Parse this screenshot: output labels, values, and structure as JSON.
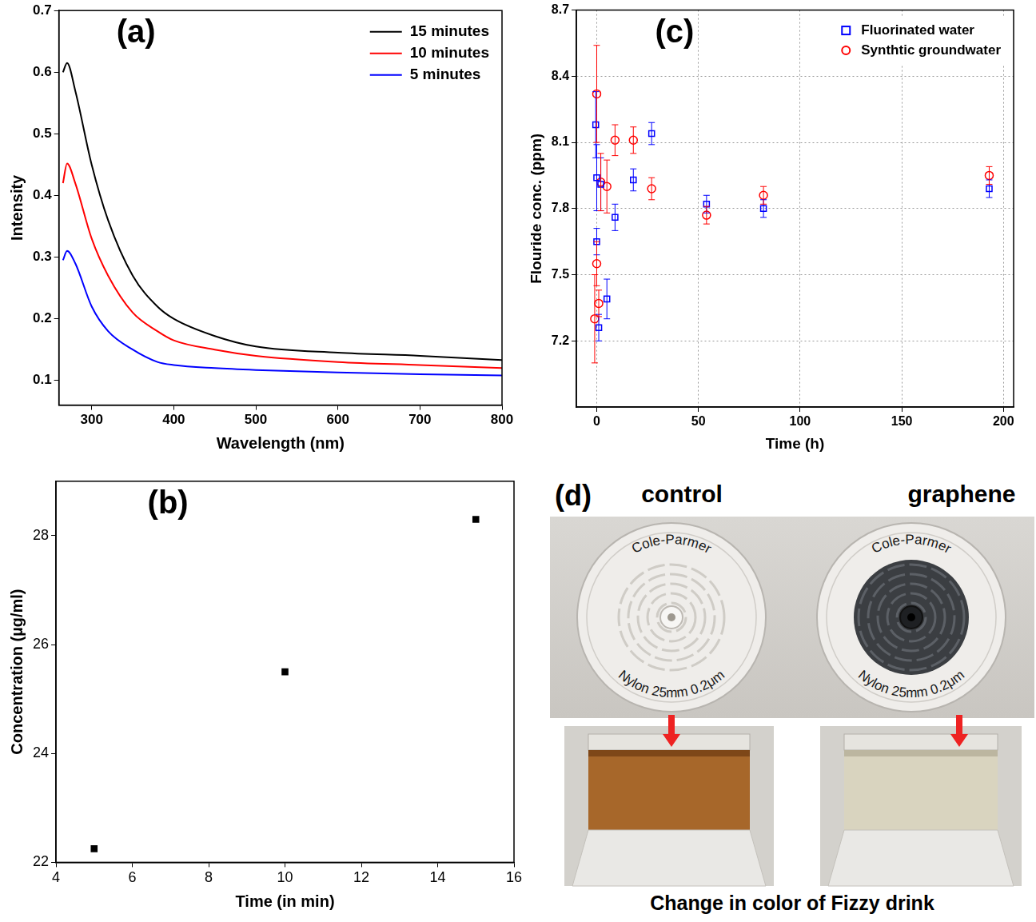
{
  "chart_data": [
    {
      "panel": "(a)",
      "type": "line",
      "x_label": "Wavelength (nm)",
      "y_label": "Intensity",
      "x": [
        265,
        270,
        280,
        300,
        320,
        350,
        380,
        400,
        450,
        500,
        600,
        700,
        800
      ],
      "series": [
        {
          "name": "15 minutes",
          "color": "#000000",
          "values": [
            0.6,
            0.615,
            0.57,
            0.45,
            0.36,
            0.27,
            0.22,
            0.2,
            0.172,
            0.155,
            0.145,
            0.14,
            0.133
          ]
        },
        {
          "name": "10 minutes",
          "color": "#ff0000",
          "values": [
            0.42,
            0.452,
            0.42,
            0.33,
            0.27,
            0.21,
            0.18,
            0.165,
            0.15,
            0.14,
            0.13,
            0.125,
            0.12
          ]
        },
        {
          "name": "5 minutes",
          "color": "#0000ff",
          "values": [
            0.295,
            0.31,
            0.29,
            0.22,
            0.18,
            0.15,
            0.13,
            0.125,
            0.12,
            0.117,
            0.113,
            0.11,
            0.108
          ]
        }
      ],
      "xlim": [
        260,
        800
      ],
      "xticks": [
        300,
        400,
        500,
        600,
        700,
        800
      ],
      "ylim": [
        0.06,
        0.7
      ],
      "yticks": [
        0.1,
        0.2,
        0.3,
        0.4,
        0.5,
        0.6,
        0.7
      ],
      "grid": false,
      "legend": "top-right"
    },
    {
      "panel": "(b)",
      "type": "scatter",
      "x_label": "Time (in min)",
      "y_label": "Concentration (µg/ml)",
      "x": [
        5,
        10,
        15
      ],
      "values": [
        22.25,
        25.5,
        28.3
      ],
      "color": "#000000",
      "marker": "square",
      "xlim": [
        4,
        16
      ],
      "xticks": [
        4,
        6,
        8,
        10,
        12,
        14,
        16
      ],
      "ylim": [
        22,
        29
      ],
      "yticks": [
        22,
        24,
        26,
        28
      ],
      "grid": false
    },
    {
      "panel": "(c)",
      "type": "scatter",
      "x_label": "Time (h)",
      "y_label": "Flouride conc. (ppm)",
      "series": [
        {
          "name": "Fluorinated water",
          "color": "#0000ff",
          "marker": "open square",
          "x": [
            -0.5,
            0,
            0,
            1,
            2,
            5,
            9,
            18,
            27,
            54,
            82,
            193
          ],
          "values": [
            8.18,
            7.94,
            7.65,
            7.26,
            7.91,
            7.39,
            7.76,
            7.93,
            8.14,
            7.82,
            7.8,
            7.89
          ],
          "errors": [
            0.15,
            0.15,
            0.06,
            0.06,
            0.12,
            0.09,
            0.06,
            0.05,
            0.05,
            0.04,
            0.04,
            0.04
          ]
        },
        {
          "name": "Synthtic groundwater",
          "color": "#ff0000",
          "marker": "open circle",
          "x": [
            -1,
            0,
            0,
            1,
            2,
            5,
            9,
            18,
            27,
            54,
            82,
            193
          ],
          "values": [
            7.3,
            8.32,
            7.55,
            7.37,
            7.92,
            7.9,
            8.11,
            8.11,
            7.89,
            7.77,
            7.86,
            7.95
          ],
          "errors": [
            0.2,
            0.22,
            0.1,
            0.06,
            0.13,
            0.12,
            0.07,
            0.06,
            0.05,
            0.04,
            0.04,
            0.04
          ]
        }
      ],
      "xlim": [
        -10,
        205
      ],
      "xticks": [
        0,
        50,
        100,
        150,
        200
      ],
      "ylim": [
        6.9,
        8.7
      ],
      "yticks": [
        7.2,
        7.5,
        7.8,
        8.1,
        8.4,
        8.7
      ],
      "grid": true,
      "legend": "top-right"
    }
  ],
  "photo_panel": {
    "panel": "(d)",
    "left_title": "control",
    "right_title": "graphene",
    "filter_brand": "Cole-Parmer",
    "filter_spec": "Nylon 25mm 0.2μm",
    "caption": "Change in color of Fizzy drink"
  }
}
